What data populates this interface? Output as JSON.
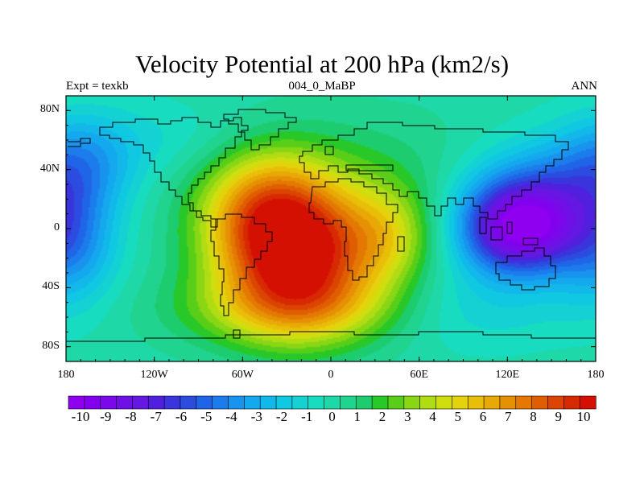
{
  "title": "Velocity Potential at 200 hPa (km2/s)",
  "left_string": "Expt = texkb",
  "center_string": "004_0_MaBP",
  "right_string": "ANN",
  "chart_data": {
    "type": "heatmap",
    "map_type": "filled contour on cylindrical equidistant map",
    "lon_range": [
      -180,
      180
    ],
    "lat_range": [
      -90,
      90
    ],
    "x_ticks": [
      {
        "value": -180,
        "label": "180"
      },
      {
        "value": -120,
        "label": "120W"
      },
      {
        "value": -60,
        "label": "60W"
      },
      {
        "value": 0,
        "label": "0"
      },
      {
        "value": 60,
        "label": "60E"
      },
      {
        "value": 120,
        "label": "120E"
      },
      {
        "value": 180,
        "label": "180"
      }
    ],
    "y_ticks": [
      {
        "value": 80,
        "label": "80N"
      },
      {
        "value": 40,
        "label": "40N"
      },
      {
        "value": 0,
        "label": "0"
      },
      {
        "value": -40,
        "label": "40S"
      },
      {
        "value": -80,
        "label": "80S"
      }
    ],
    "colorbar_labels": [
      "-10",
      "-9",
      "-8",
      "-7",
      "-6",
      "-5",
      "-4",
      "-3",
      "-2",
      "-1",
      "0",
      "1",
      "2",
      "3",
      "4",
      "5",
      "6",
      "7",
      "8",
      "9",
      "10"
    ],
    "colorbar_range": [
      -10.5,
      10.5
    ],
    "colorbar_colors": [
      "#8F00F0",
      "#8300EE",
      "#7A08EA",
      "#6F10E6",
      "#6418E2",
      "#5020DE",
      "#3A34DC",
      "#2C4CE0",
      "#2064E8",
      "#1C7CEC",
      "#1894EE",
      "#14A8EE",
      "#12B8EA",
      "#10C8E2",
      "#14D2D4",
      "#18DCC0",
      "#1ED8A8",
      "#20D490",
      "#1ECC70",
      "#28C828",
      "#58CE18",
      "#88D614",
      "#B0DC14",
      "#D0DE10",
      "#E4D20C",
      "#E8BE08",
      "#E8A806",
      "#E69004",
      "#E47802",
      "#E05E02",
      "#DC4402",
      "#D82A02",
      "#D41002"
    ],
    "field_features": [
      {
        "kind": "maximum",
        "lon": -23,
        "lat": -18,
        "value": 10.2
      },
      {
        "kind": "minimum",
        "lon": 128,
        "lat": 0,
        "value": -10.0
      },
      {
        "kind": "secondary_minimum",
        "lon": -176,
        "lat": -10,
        "value": -7.0
      },
      {
        "kind": "dateline_negative",
        "lon": 175,
        "lat": -10,
        "value": -6.5
      }
    ],
    "projection": "cylindrical equidistant"
  }
}
